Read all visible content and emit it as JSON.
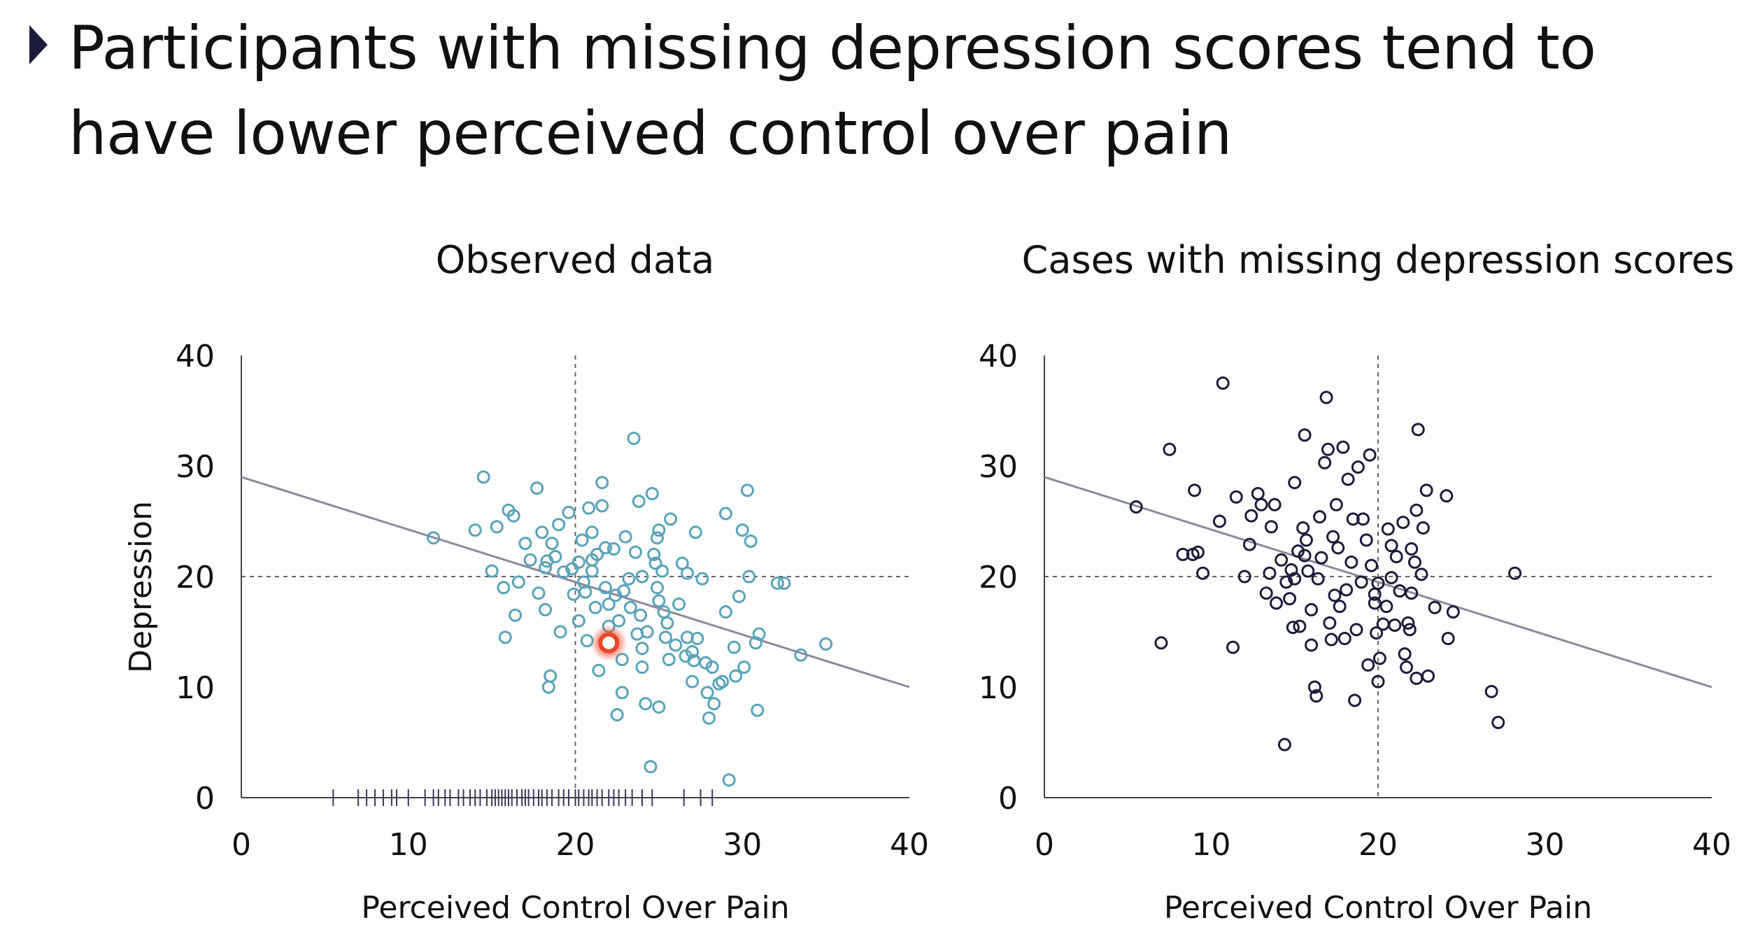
{
  "slide": {
    "title": "Participants with missing depression scores tend to have lower perceived control over pain",
    "bullet_icon": "triangle-bullet-icon"
  },
  "colors": {
    "observed_marker": "#5aa3b8",
    "missing_marker": "#1c1c3a",
    "highlight": "#e8472a",
    "regression_line": "#8a8a9a",
    "axis": "#444444",
    "rug": "#3a3a5a",
    "mean_lines": "#666666"
  },
  "chart_data": [
    {
      "type": "scatter",
      "title": "Observed data",
      "xlabel": "Perceived Control Over Pain",
      "ylabel": "Depression",
      "xlim": [
        0,
        40
      ],
      "ylim": [
        0,
        40
      ],
      "xticks": [
        "0",
        "10",
        "20",
        "30",
        "40"
      ],
      "yticks": [
        "0",
        "10",
        "20",
        "30",
        "40"
      ],
      "reference_lines": {
        "x": 20,
        "y": 20,
        "style": "dashed"
      },
      "regression_line": {
        "x1": 0,
        "y1": 29,
        "x2": 40,
        "y2": 10
      },
      "highlight_point": {
        "x": 22.0,
        "y": 14.0
      },
      "rug_x": [
        5.5,
        7,
        7.5,
        8,
        8.5,
        9,
        9.3,
        10,
        11,
        11.5,
        11.8,
        12.2,
        12.5,
        13,
        13.3,
        13.7,
        14,
        14.3,
        14.7,
        15,
        15.2,
        15.4,
        15.6,
        15.8,
        16,
        16.2,
        16.5,
        16.8,
        17,
        17.2,
        17.5,
        17.8,
        18,
        18.3,
        18.6,
        19,
        19.3,
        19.6,
        20,
        20.2,
        20.5,
        20.8,
        21,
        21.3,
        21.6,
        22,
        22.3,
        22.6,
        23,
        23.4,
        24,
        24.6,
        26.5,
        27.5,
        28.2
      ],
      "points": [
        {
          "x": 11.5,
          "y": 23.5
        },
        {
          "x": 14.5,
          "y": 29
        },
        {
          "x": 14,
          "y": 24.2
        },
        {
          "x": 15,
          "y": 20.5
        },
        {
          "x": 15.3,
          "y": 24.5
        },
        {
          "x": 15.7,
          "y": 19
        },
        {
          "x": 15.8,
          "y": 14.5
        },
        {
          "x": 16,
          "y": 26
        },
        {
          "x": 16.3,
          "y": 25.5
        },
        {
          "x": 16.4,
          "y": 16.5
        },
        {
          "x": 16.6,
          "y": 19.5
        },
        {
          "x": 17,
          "y": 23
        },
        {
          "x": 17.3,
          "y": 21.5
        },
        {
          "x": 17.7,
          "y": 28
        },
        {
          "x": 17.8,
          "y": 18.5
        },
        {
          "x": 18,
          "y": 24
        },
        {
          "x": 18.2,
          "y": 20.8
        },
        {
          "x": 18.3,
          "y": 21.4
        },
        {
          "x": 18.2,
          "y": 17
        },
        {
          "x": 18.5,
          "y": 11
        },
        {
          "x": 18.4,
          "y": 10
        },
        {
          "x": 18.6,
          "y": 23
        },
        {
          "x": 18.8,
          "y": 21.8
        },
        {
          "x": 19,
          "y": 24.7
        },
        {
          "x": 19.3,
          "y": 20.4
        },
        {
          "x": 19.6,
          "y": 25.8
        },
        {
          "x": 19.8,
          "y": 20.7
        },
        {
          "x": 19.9,
          "y": 18.4
        },
        {
          "x": 20.2,
          "y": 16
        },
        {
          "x": 20.2,
          "y": 21.3
        },
        {
          "x": 20.4,
          "y": 23.3
        },
        {
          "x": 20.5,
          "y": 19.5
        },
        {
          "x": 20.6,
          "y": 18.6
        },
        {
          "x": 20.8,
          "y": 26.2
        },
        {
          "x": 21,
          "y": 24
        },
        {
          "x": 21,
          "y": 21.5
        },
        {
          "x": 21,
          "y": 20.5
        },
        {
          "x": 21.2,
          "y": 17.2
        },
        {
          "x": 21.3,
          "y": 22
        },
        {
          "x": 21.4,
          "y": 11.5
        },
        {
          "x": 21.6,
          "y": 28.5
        },
        {
          "x": 21.6,
          "y": 26.4
        },
        {
          "x": 21.8,
          "y": 22.6
        },
        {
          "x": 21.8,
          "y": 19
        },
        {
          "x": 22,
          "y": 17.5
        },
        {
          "x": 22,
          "y": 15.5
        },
        {
          "x": 22.3,
          "y": 22.5
        },
        {
          "x": 22.4,
          "y": 18.3
        },
        {
          "x": 22.5,
          "y": 7.5
        },
        {
          "x": 22.6,
          "y": 16
        },
        {
          "x": 22.8,
          "y": 12.5
        },
        {
          "x": 22.8,
          "y": 9.5
        },
        {
          "x": 23,
          "y": 23.6
        },
        {
          "x": 23.2,
          "y": 19.8
        },
        {
          "x": 23.3,
          "y": 17.2
        },
        {
          "x": 23.5,
          "y": 32.5
        },
        {
          "x": 23.6,
          "y": 22.2
        },
        {
          "x": 23.8,
          "y": 26.8
        },
        {
          "x": 23.9,
          "y": 16.5
        },
        {
          "x": 24,
          "y": 20
        },
        {
          "x": 24,
          "y": 13.5
        },
        {
          "x": 24,
          "y": 11.8
        },
        {
          "x": 24.2,
          "y": 8.5
        },
        {
          "x": 24.3,
          "y": 15
        },
        {
          "x": 24.5,
          "y": 2.8
        },
        {
          "x": 24.6,
          "y": 27.5
        },
        {
          "x": 24.7,
          "y": 22
        },
        {
          "x": 24.8,
          "y": 21.2
        },
        {
          "x": 24.9,
          "y": 23.5
        },
        {
          "x": 24.9,
          "y": 19
        },
        {
          "x": 25,
          "y": 24.2
        },
        {
          "x": 25,
          "y": 17.8
        },
        {
          "x": 25,
          "y": 8.2
        },
        {
          "x": 25.2,
          "y": 20.5
        },
        {
          "x": 25.3,
          "y": 16.8
        },
        {
          "x": 25.4,
          "y": 14.5
        },
        {
          "x": 25.6,
          "y": 12.5
        },
        {
          "x": 25.7,
          "y": 25.2
        },
        {
          "x": 26,
          "y": 13.8
        },
        {
          "x": 26.2,
          "y": 17.5
        },
        {
          "x": 26.4,
          "y": 21.2
        },
        {
          "x": 26.6,
          "y": 12.8
        },
        {
          "x": 26.7,
          "y": 14.5
        },
        {
          "x": 27,
          "y": 10.5
        },
        {
          "x": 27,
          "y": 13.2
        },
        {
          "x": 27.2,
          "y": 24
        },
        {
          "x": 27.3,
          "y": 14.4
        },
        {
          "x": 27.6,
          "y": 19.8
        },
        {
          "x": 27.8,
          "y": 12.2
        },
        {
          "x": 27.9,
          "y": 9.5
        },
        {
          "x": 28,
          "y": 7.2
        },
        {
          "x": 28.3,
          "y": 8.5
        },
        {
          "x": 28.6,
          "y": 10.3
        },
        {
          "x": 28.8,
          "y": 10.5
        },
        {
          "x": 29,
          "y": 16.8
        },
        {
          "x": 29,
          "y": 25.7
        },
        {
          "x": 29.2,
          "y": 1.6
        },
        {
          "x": 29.5,
          "y": 13.6
        },
        {
          "x": 29.6,
          "y": 11
        },
        {
          "x": 29.8,
          "y": 18.2
        },
        {
          "x": 30,
          "y": 24.2
        },
        {
          "x": 30.1,
          "y": 11.8
        },
        {
          "x": 30.3,
          "y": 27.8
        },
        {
          "x": 30.5,
          "y": 23.2
        },
        {
          "x": 30.8,
          "y": 14
        },
        {
          "x": 30.9,
          "y": 7.9
        },
        {
          "x": 31,
          "y": 14.8
        },
        {
          "x": 30.4,
          "y": 20
        },
        {
          "x": 32.5,
          "y": 19.4
        },
        {
          "x": 32.1,
          "y": 19.4
        },
        {
          "x": 33.5,
          "y": 12.9
        },
        {
          "x": 35,
          "y": 13.9
        },
        {
          "x": 19.1,
          "y": 15
        },
        {
          "x": 22.9,
          "y": 18.7
        },
        {
          "x": 25.5,
          "y": 15.8
        },
        {
          "x": 26.7,
          "y": 20.3
        },
        {
          "x": 20.7,
          "y": 14.2
        },
        {
          "x": 27.1,
          "y": 12.4
        },
        {
          "x": 28.2,
          "y": 11.8
        },
        {
          "x": 23.7,
          "y": 14.8
        }
      ]
    },
    {
      "type": "scatter",
      "title": "Cases with missing depression scores",
      "xlabel": "Perceived Control Over Pain",
      "ylabel": "",
      "xlim": [
        0,
        40
      ],
      "ylim": [
        0,
        40
      ],
      "xticks": [
        "0",
        "10",
        "20",
        "30",
        "40"
      ],
      "yticks": [
        "0",
        "10",
        "20",
        "30",
        "40"
      ],
      "reference_lines": {
        "x": 20,
        "y": 20,
        "style": "dashed"
      },
      "regression_line": {
        "x1": 0,
        "y1": 29,
        "x2": 40,
        "y2": 10
      },
      "points": [
        {
          "x": 5.5,
          "y": 26.3
        },
        {
          "x": 7,
          "y": 14
        },
        {
          "x": 7.5,
          "y": 31.5
        },
        {
          "x": 8.3,
          "y": 22
        },
        {
          "x": 8.9,
          "y": 22
        },
        {
          "x": 9,
          "y": 27.8
        },
        {
          "x": 9.2,
          "y": 22.2
        },
        {
          "x": 9.5,
          "y": 20.3
        },
        {
          "x": 10.7,
          "y": 37.5
        },
        {
          "x": 10.5,
          "y": 25
        },
        {
          "x": 11.3,
          "y": 13.6
        },
        {
          "x": 11.5,
          "y": 27.2
        },
        {
          "x": 12,
          "y": 20
        },
        {
          "x": 12.3,
          "y": 22.9
        },
        {
          "x": 12.4,
          "y": 25.5
        },
        {
          "x": 12.8,
          "y": 27.5
        },
        {
          "x": 13,
          "y": 26.5
        },
        {
          "x": 13.3,
          "y": 18.5
        },
        {
          "x": 13.5,
          "y": 20.3
        },
        {
          "x": 13.6,
          "y": 24.5
        },
        {
          "x": 13.8,
          "y": 26.5
        },
        {
          "x": 14.2,
          "y": 21.5
        },
        {
          "x": 14.4,
          "y": 4.8
        },
        {
          "x": 14.5,
          "y": 19.5
        },
        {
          "x": 14.7,
          "y": 18
        },
        {
          "x": 14.8,
          "y": 20.6
        },
        {
          "x": 15,
          "y": 28.5
        },
        {
          "x": 15,
          "y": 19.8
        },
        {
          "x": 15.2,
          "y": 22.3
        },
        {
          "x": 15.3,
          "y": 15.5
        },
        {
          "x": 15.5,
          "y": 24.4
        },
        {
          "x": 15.6,
          "y": 32.8
        },
        {
          "x": 15.7,
          "y": 23.3
        },
        {
          "x": 15.8,
          "y": 20.5
        },
        {
          "x": 16,
          "y": 13.8
        },
        {
          "x": 16,
          "y": 17
        },
        {
          "x": 16.2,
          "y": 10
        },
        {
          "x": 16.3,
          "y": 9.2
        },
        {
          "x": 16.5,
          "y": 25.4
        },
        {
          "x": 16.6,
          "y": 21.7
        },
        {
          "x": 16.8,
          "y": 30.3
        },
        {
          "x": 16.9,
          "y": 36.2
        },
        {
          "x": 17,
          "y": 31.5
        },
        {
          "x": 17.1,
          "y": 15.8
        },
        {
          "x": 17.2,
          "y": 14.3
        },
        {
          "x": 17.3,
          "y": 23.6
        },
        {
          "x": 17.4,
          "y": 18.3
        },
        {
          "x": 17.5,
          "y": 26.5
        },
        {
          "x": 17.6,
          "y": 22.6
        },
        {
          "x": 17.9,
          "y": 31.7
        },
        {
          "x": 18,
          "y": 14.4
        },
        {
          "x": 18.2,
          "y": 28.8
        },
        {
          "x": 18.4,
          "y": 21.3
        },
        {
          "x": 18.5,
          "y": 25.2
        },
        {
          "x": 18.6,
          "y": 8.8
        },
        {
          "x": 18.8,
          "y": 29.9
        },
        {
          "x": 19,
          "y": 19.5
        },
        {
          "x": 19.1,
          "y": 25.2
        },
        {
          "x": 19.3,
          "y": 23.3
        },
        {
          "x": 19.4,
          "y": 12
        },
        {
          "x": 19.5,
          "y": 31
        },
        {
          "x": 19.6,
          "y": 21
        },
        {
          "x": 19.8,
          "y": 18.4
        },
        {
          "x": 20,
          "y": 10.5
        },
        {
          "x": 20,
          "y": 19.4
        },
        {
          "x": 20.1,
          "y": 12.6
        },
        {
          "x": 20.3,
          "y": 15.7
        },
        {
          "x": 20.5,
          "y": 17.3
        },
        {
          "x": 20.6,
          "y": 24.3
        },
        {
          "x": 20.8,
          "y": 19.9
        },
        {
          "x": 21,
          "y": 15.6
        },
        {
          "x": 21.1,
          "y": 21.8
        },
        {
          "x": 21.3,
          "y": 18.7
        },
        {
          "x": 21.5,
          "y": 24.9
        },
        {
          "x": 21.6,
          "y": 13
        },
        {
          "x": 21.7,
          "y": 11.8
        },
        {
          "x": 21.8,
          "y": 15.8
        },
        {
          "x": 22,
          "y": 22.5
        },
        {
          "x": 22,
          "y": 18.5
        },
        {
          "x": 22.2,
          "y": 21.3
        },
        {
          "x": 22.3,
          "y": 10.8
        },
        {
          "x": 22.3,
          "y": 26
        },
        {
          "x": 22.4,
          "y": 33.3
        },
        {
          "x": 22.7,
          "y": 24.4
        },
        {
          "x": 23,
          "y": 11
        },
        {
          "x": 22.9,
          "y": 27.8
        },
        {
          "x": 23.4,
          "y": 17.2
        },
        {
          "x": 24.1,
          "y": 27.3
        },
        {
          "x": 24.2,
          "y": 14.4
        },
        {
          "x": 24.5,
          "y": 16.8
        },
        {
          "x": 26.8,
          "y": 9.6
        },
        {
          "x": 27.2,
          "y": 6.8
        },
        {
          "x": 28.2,
          "y": 20.3
        },
        {
          "x": 17.7,
          "y": 17.3
        },
        {
          "x": 19.8,
          "y": 17.6
        },
        {
          "x": 14.9,
          "y": 15.4
        },
        {
          "x": 20.8,
          "y": 22.8
        },
        {
          "x": 18.7,
          "y": 15.2
        },
        {
          "x": 16.4,
          "y": 19.8
        },
        {
          "x": 21.9,
          "y": 15.2
        },
        {
          "x": 13.9,
          "y": 17.6
        },
        {
          "x": 15.6,
          "y": 21.9
        },
        {
          "x": 18.1,
          "y": 18.8
        },
        {
          "x": 22.6,
          "y": 20.2
        },
        {
          "x": 19.9,
          "y": 14.9
        }
      ]
    }
  ]
}
